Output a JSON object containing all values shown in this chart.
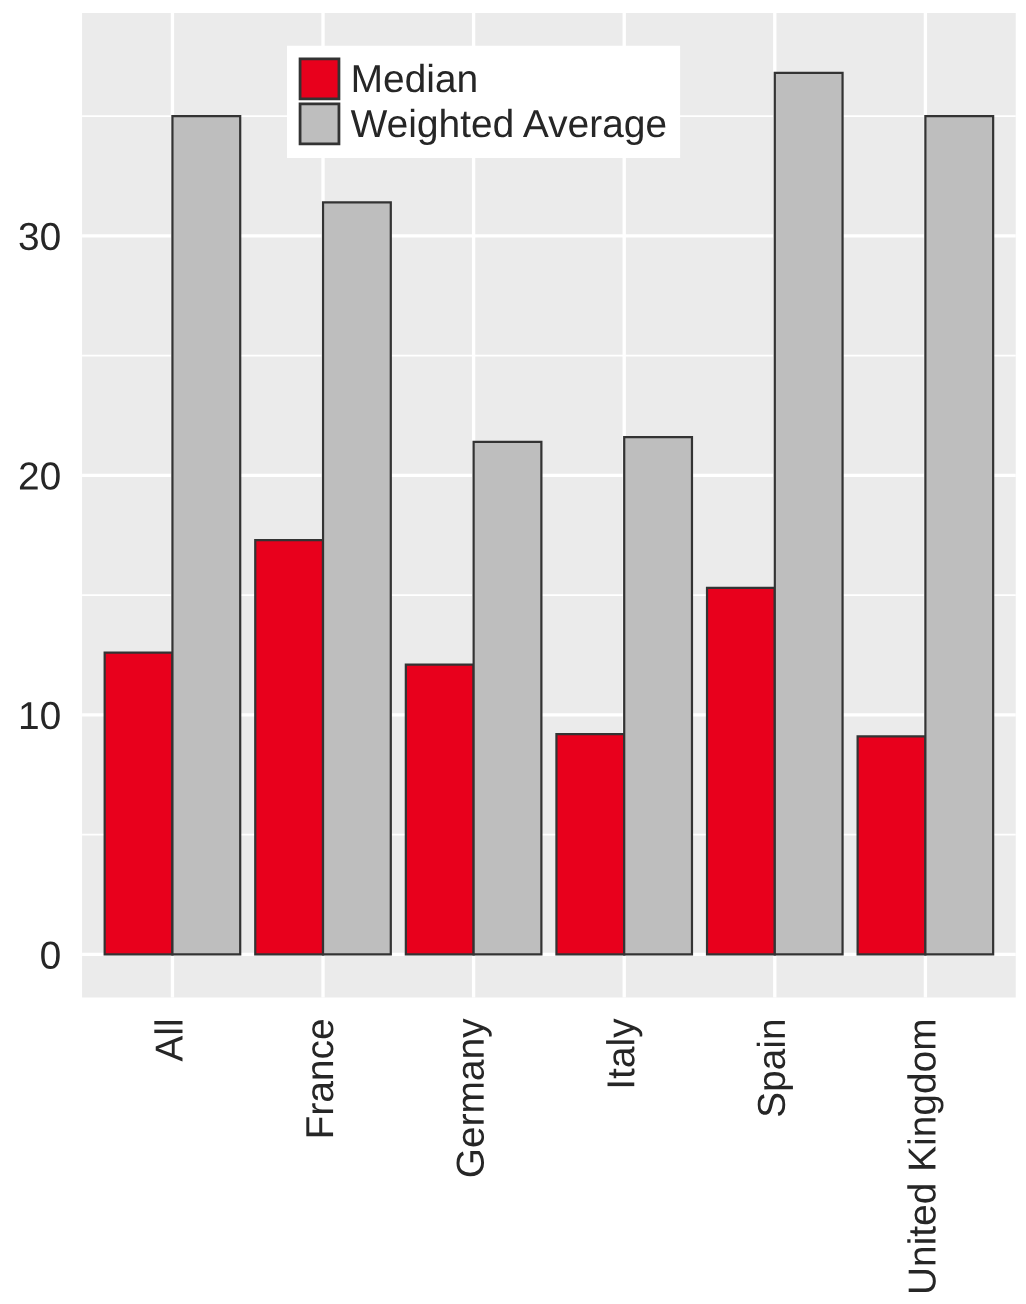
{
  "chart_data": {
    "type": "bar",
    "categories": [
      "All",
      "France",
      "Germany",
      "Italy",
      "Spain",
      "United Kingdom"
    ],
    "series": [
      {
        "name": "Median",
        "color": "#e8001c",
        "values": [
          12.6,
          17.3,
          12.1,
          9.2,
          15.3,
          9.1
        ]
      },
      {
        "name": "Weighted Average",
        "color": "#bebebe",
        "values": [
          35.0,
          31.4,
          21.4,
          21.6,
          36.8,
          35.0
        ]
      }
    ],
    "ylim": [
      -1.8,
      39.3
    ],
    "yticks": [
      0,
      10,
      20,
      30
    ],
    "grid": true,
    "legend": "top"
  }
}
